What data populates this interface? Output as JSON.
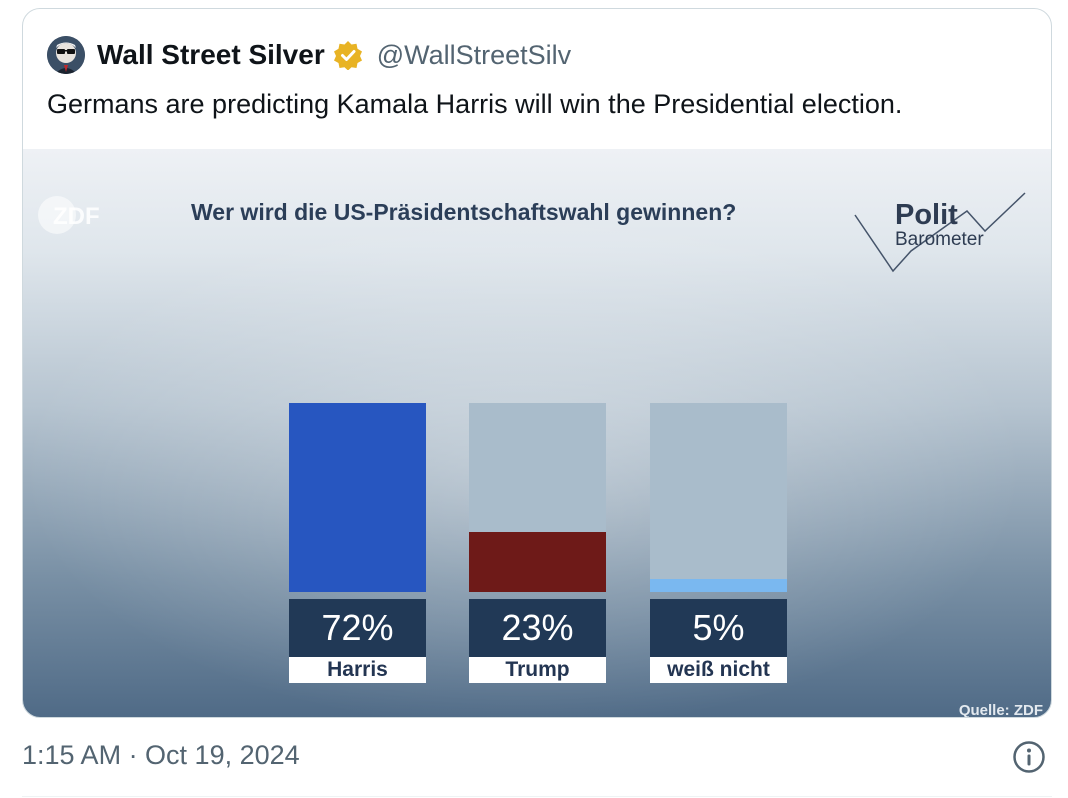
{
  "quoted_tweet": {
    "author_name": "Wall Street Silver",
    "handle": "@WallStreetSilv",
    "verified_badge_color": "#e8b324",
    "text": "Germans are predicting Kamala Harris will win the Presidential election."
  },
  "media": {
    "broadcaster_logo": "ZDF",
    "polit_word": "Polit",
    "barometer_word": "Barometer",
    "source": "Quelle: ZDF"
  },
  "chart_data": {
    "type": "bar",
    "title": "Wer wird die US-Präsidentschaftswahl gewinnen?",
    "categories": [
      "Harris",
      "Trump",
      "weiß nicht"
    ],
    "values": [
      72,
      23,
      5
    ],
    "value_labels": [
      "72%",
      "23%",
      "5%"
    ],
    "colors": [
      "#2756c0",
      "#6e1a18",
      "#7ab8f0"
    ],
    "ylim": [
      0,
      72
    ],
    "grid": false
  },
  "footer": {
    "timestamp": "1:15 AM · Oct 19, 2024",
    "info_icon": "info-icon"
  }
}
